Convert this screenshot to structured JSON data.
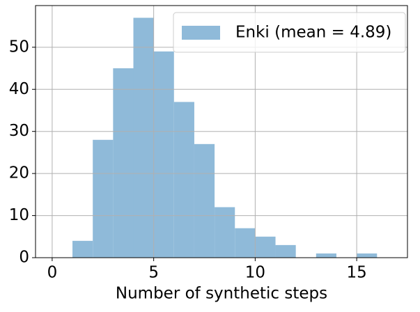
{
  "chart_data": {
    "type": "histogram",
    "xlabel": "Number of synthetic steps",
    "bins": [
      1,
      2,
      3,
      4,
      5,
      6,
      7,
      8,
      9,
      10,
      11,
      12,
      13,
      14,
      15,
      16
    ],
    "series": [
      {
        "name": "Enki (mean = 4.89)",
        "color": "#8fbad9",
        "values": [
          4,
          28,
          45,
          57,
          49,
          37,
          27,
          12,
          7,
          5,
          3,
          0,
          1,
          0,
          1
        ]
      }
    ],
    "xlim": [
      -0.82,
      17.5
    ],
    "ylim": [
      0,
      59.9
    ],
    "xticks": [
      0,
      5,
      10,
      15
    ],
    "yticks": [
      0,
      10,
      20,
      30,
      40,
      50
    ],
    "grid": true,
    "legend": "upper right"
  }
}
